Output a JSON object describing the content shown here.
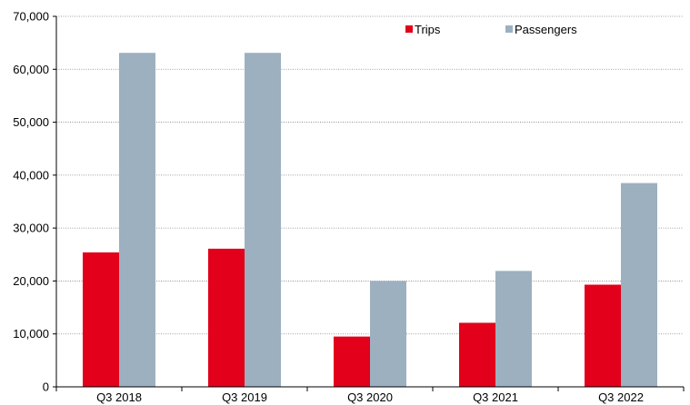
{
  "chart_data": {
    "type": "bar",
    "title": "",
    "xlabel": "",
    "ylabel": "",
    "categories": [
      "Q3 2018",
      "Q3 2019",
      "Q3 2020",
      "Q3 2021",
      "Q3 2022"
    ],
    "series": [
      {
        "name": "Trips",
        "color": "#e2001a",
        "values": [
          25400,
          26100,
          9500,
          12100,
          19300
        ]
      },
      {
        "name": "Passengers",
        "color": "#9db0c0",
        "values": [
          63100,
          63100,
          20000,
          21900,
          38500
        ]
      }
    ],
    "ylim": [
      0,
      70000
    ],
    "yticks": [
      0,
      10000,
      20000,
      30000,
      40000,
      50000,
      60000,
      70000
    ],
    "ytick_labels": [
      "0",
      "10,000",
      "20,000",
      "30,000",
      "40,000",
      "50,000",
      "60,000",
      "70,000"
    ],
    "grid": "horizontal dotted",
    "legend_position": "top-right"
  }
}
